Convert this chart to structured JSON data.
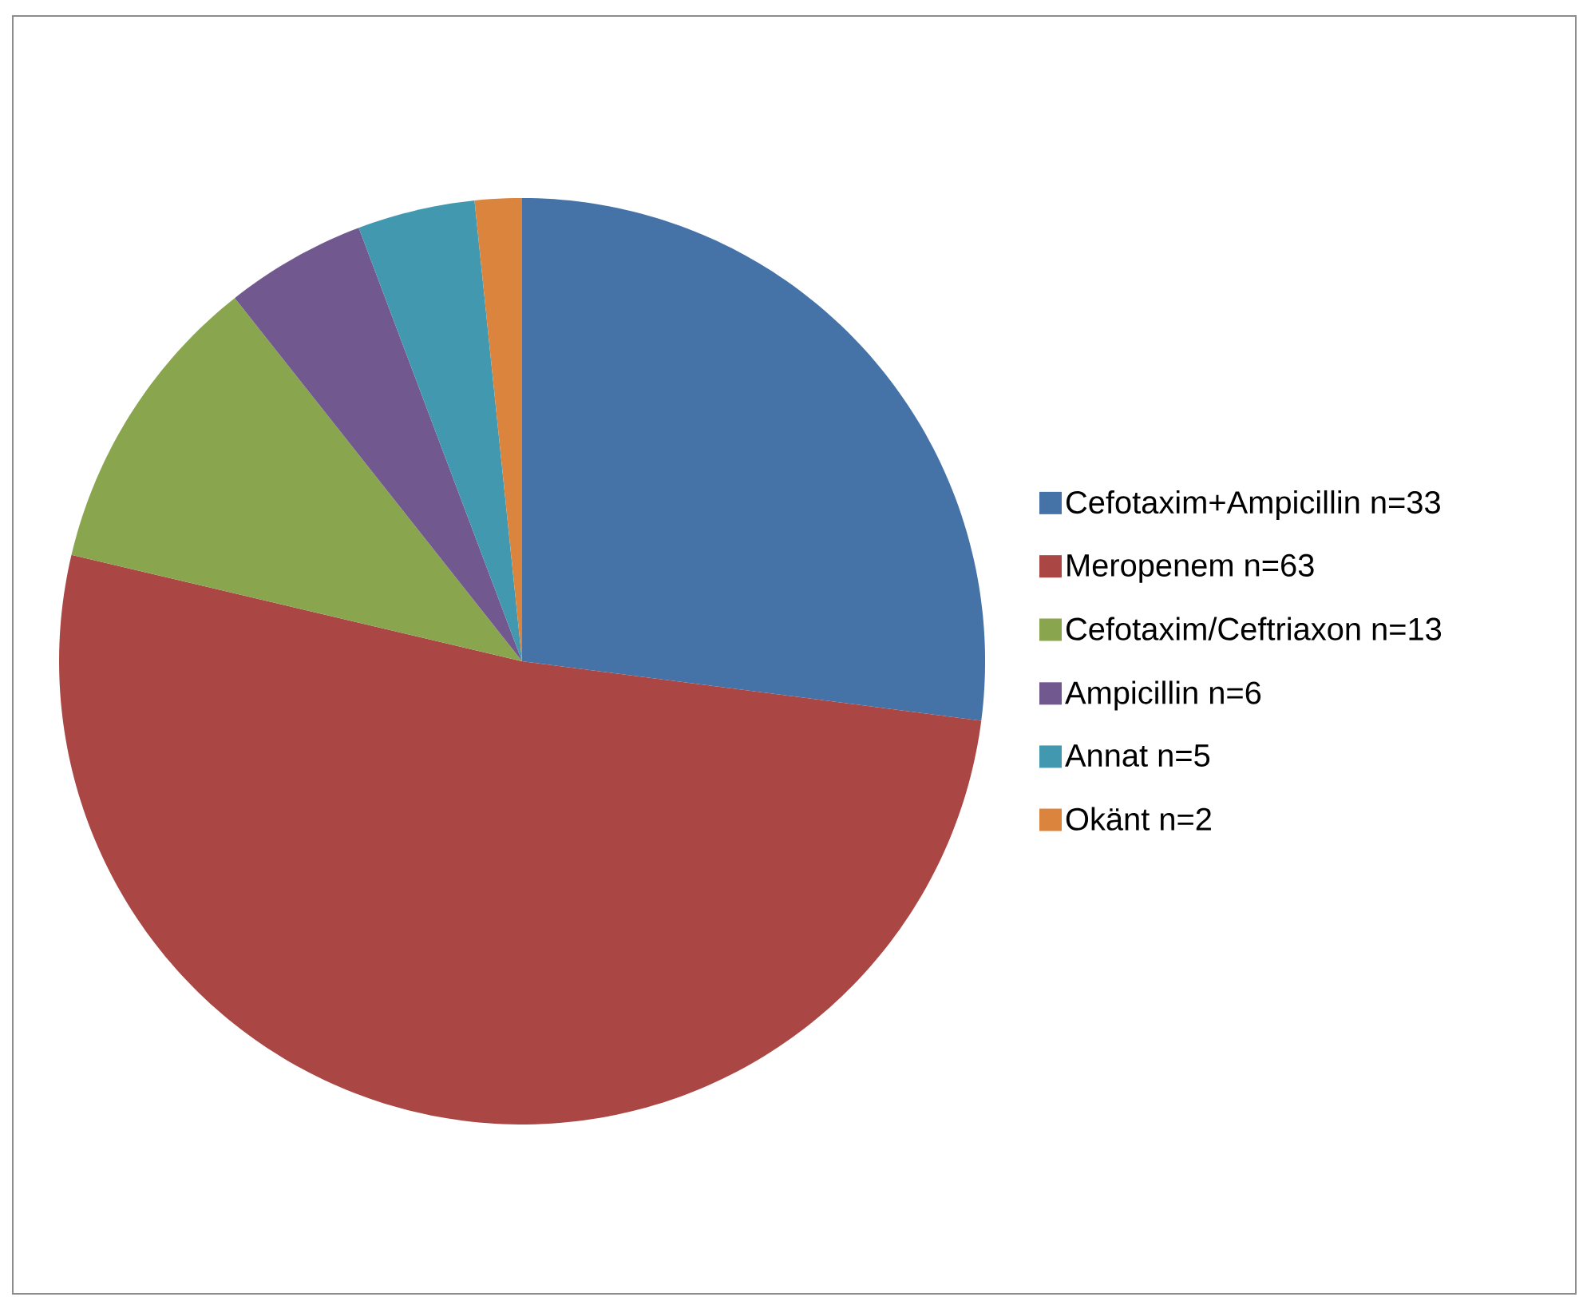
{
  "chart_data": {
    "type": "pie",
    "categories": [
      "Cefotaxim+Ampicillin n=33",
      "Meropenem n=63",
      "Cefotaxim/Ceftriaxon n=13",
      "Ampicillin n=6",
      "Annat n=5",
      "Okänt n=2"
    ],
    "values": [
      33,
      63,
      13,
      6,
      5,
      2
    ],
    "colors": [
      "#4572a7",
      "#aa4643",
      "#89a54e",
      "#71588f",
      "#4198af",
      "#db843d"
    ],
    "legend": "right"
  }
}
